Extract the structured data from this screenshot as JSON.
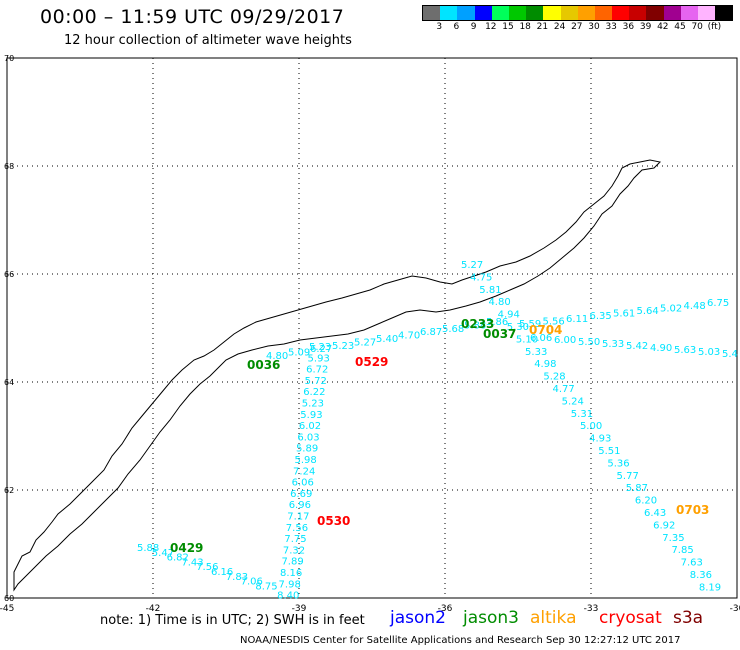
{
  "title": "00:00 – 11:59 UTC 09/29/2017",
  "subtitle": "12 hour collection of altimeter wave heights",
  "colorbar": {
    "colors": [
      "#6e6e6e",
      "#00e4ff",
      "#00a0ff",
      "#0000ff",
      "#00ff5a",
      "#00c800",
      "#008c00",
      "#ffff00",
      "#e6c800",
      "#ffa000",
      "#ff6400",
      "#ff0000",
      "#c80000",
      "#800000",
      "#a00090",
      "#e664f0",
      "#ffb4ff",
      "#000000"
    ],
    "labels": [
      "3",
      "6",
      "9",
      "12",
      "15",
      "18",
      "21",
      "24",
      "27",
      "30",
      "33",
      "36",
      "39",
      "42",
      "45",
      "70",
      "(ft)"
    ]
  },
  "axes": {
    "lon_labels": [
      "-45",
      "-42",
      "-39",
      "-36",
      "-33",
      "-30"
    ],
    "lat_labels": [
      "70",
      "68",
      "66",
      "64",
      "62",
      "60"
    ]
  },
  "map_data": {
    "lon_range": [
      -45,
      -30
    ],
    "lat_range": [
      60,
      70
    ],
    "passes": [
      {
        "satellite": "jason3",
        "time": "0036",
        "color": "#008c00"
      },
      {
        "satellite": "jason3",
        "time": "0233",
        "color": "#008c00"
      },
      {
        "satellite": "jason3",
        "time": "0037",
        "color": "#008c00"
      },
      {
        "satellite": "jason3",
        "time": "0429",
        "color": "#008c00"
      },
      {
        "satellite": "altika",
        "time": "0704",
        "color": "#ffa000"
      },
      {
        "satellite": "altika",
        "time": "0703",
        "color": "#ffa000"
      },
      {
        "satellite": "cryosat",
        "time": "0529",
        "color": "#ff0000"
      },
      {
        "satellite": "cryosat",
        "time": "0530",
        "color": "#ff0000"
      }
    ],
    "swh_labels": {
      "track_a": [
        "5.23",
        "5.93",
        "6.72",
        "5.72",
        "6.22",
        "5.23",
        "5.93",
        "6.02",
        "6.03",
        "5.89",
        "5.98",
        "7.24",
        "6.06",
        "6.69",
        "6.96",
        "7.17",
        "7.56",
        "7.75",
        "7.32",
        "7.89",
        "8.16",
        "7.98",
        "8.40"
      ],
      "track_b": [
        "5.88",
        "5.47",
        "6.82",
        "7.43",
        "7.56",
        "6.16",
        "7.83",
        "7.06",
        "8.75"
      ],
      "track_c": [
        "4.80",
        "5.09",
        "6.27",
        "5.23",
        "5.27",
        "5.40",
        "4.70",
        "6.87",
        "5.68",
        "5.88",
        "5.86"
      ],
      "track_d": [
        "5.27",
        "4.75",
        "5.81",
        "4.80",
        "4.94",
        "5.30",
        "5.10",
        "5.33",
        "4.98",
        "5.28",
        "4.77",
        "5.24",
        "5.31",
        "5.00",
        "4.93",
        "5.51",
        "5.36",
        "5.77",
        "5.87",
        "6.20",
        "6.43",
        "6.92",
        "7.35",
        "7.85",
        "7.63",
        "8.36",
        "8.19"
      ],
      "track_e": [
        "5.59",
        "5.56",
        "6.11",
        "6.35",
        "5.61",
        "5.64",
        "5.02",
        "4.48",
        "6.75"
      ],
      "track_f": [
        "6.06",
        "6.00",
        "5.50",
        "5.33",
        "5.42",
        "4.90",
        "5.63",
        "5.03",
        "5.4"
      ]
    }
  },
  "note": "note: 1) Time is in UTC; 2) SWH is in feet",
  "legend": {
    "jason2": {
      "label": "jason2",
      "color": "#0000ff"
    },
    "jason3": {
      "label": "jason3",
      "color": "#008c00"
    },
    "altika": {
      "label": "altika",
      "color": "#ffa000"
    },
    "cryosat": {
      "label": "cryosat",
      "color": "#ff0000"
    },
    "s3a": {
      "label": "s3a",
      "color": "#800000"
    }
  },
  "footer": "NOAA/NESDIS Center for Satellite Applications and Research    Sep 30 12:27:12 UTC 2017"
}
